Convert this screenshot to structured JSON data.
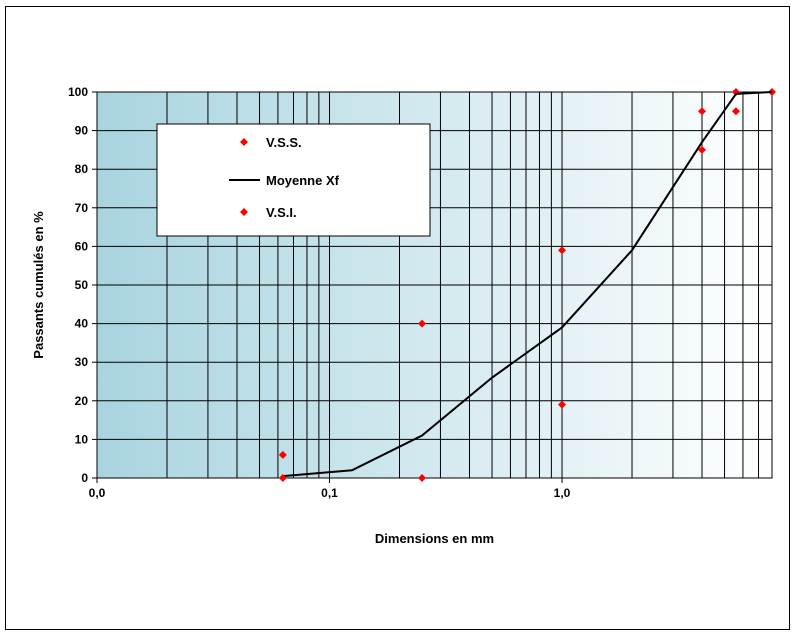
{
  "chart_data": {
    "type": "scatter",
    "xlabel": "Dimensions en mm",
    "ylabel": "Passants cumulés en %",
    "x_scale": "log",
    "xlim": [
      0.01,
      8
    ],
    "ylim": [
      0,
      100
    ],
    "x_tick_labels": [
      "0,0",
      "0,1",
      "1,0"
    ],
    "y_ticks": [
      0,
      10,
      20,
      30,
      40,
      50,
      60,
      70,
      80,
      90,
      100
    ],
    "grid": true,
    "legend_position": "top-left",
    "colors": {
      "vss": "#ff0000",
      "vsi": "#ff0000",
      "mean": "#000000",
      "plot_bg_left": "#a8d4e0",
      "plot_bg_right": "#ffffff"
    },
    "series": [
      {
        "name": "V.S.S.",
        "kind": "markers",
        "x": [
          0.063,
          0.25,
          1.0,
          4.0,
          5.6,
          8.0
        ],
        "y": [
          6,
          40,
          59,
          95,
          100,
          100
        ]
      },
      {
        "name": "Moyenne Xf",
        "kind": "line",
        "x": [
          0.063,
          0.125,
          0.25,
          0.5,
          1.0,
          2.0,
          4.0,
          5.6,
          8.0
        ],
        "y": [
          0.5,
          2,
          11,
          26,
          39,
          59,
          87,
          99.5,
          100
        ]
      },
      {
        "name": "V.S.I.",
        "kind": "markers",
        "x": [
          0.063,
          0.25,
          1.0,
          4.0,
          5.6
        ],
        "y": [
          0,
          0,
          19,
          85,
          95
        ]
      }
    ]
  }
}
